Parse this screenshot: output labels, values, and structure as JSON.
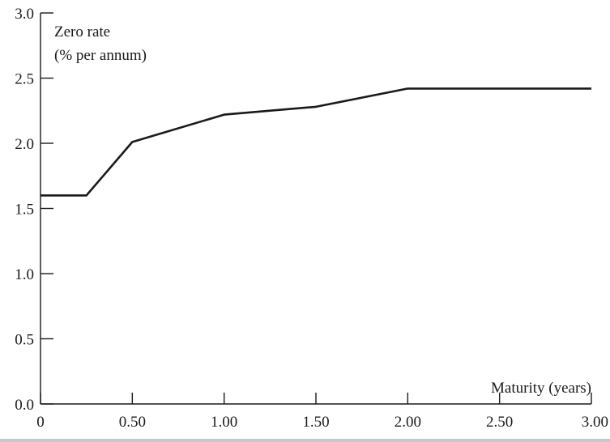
{
  "chart_data": {
    "type": "line",
    "title": "",
    "ylabel_lines": [
      "Zero rate",
      "(% per annum)"
    ],
    "xlabel": "Maturity (years)",
    "xlim": [
      0,
      3
    ],
    "ylim": [
      0,
      3
    ],
    "x_ticks": [
      0,
      0.5,
      1,
      1.5,
      2,
      2.5,
      3
    ],
    "x_tick_labels": [
      "0",
      "0.50",
      "1.00",
      "1.50",
      "2.00",
      "2.50",
      "3.00"
    ],
    "y_ticks": [
      0,
      0.5,
      1,
      1.5,
      2,
      2.5,
      3
    ],
    "y_tick_labels": [
      "0.0",
      "0.5",
      "1.0",
      "1.5",
      "2.0",
      "2.5",
      "3.0"
    ],
    "grid": false,
    "series": [
      {
        "x": [
          0,
          0.25,
          0.5,
          1.0,
          1.5,
          2.0,
          3.0
        ],
        "y": [
          1.6,
          1.6,
          2.01,
          2.22,
          2.28,
          2.42,
          2.42
        ]
      }
    ]
  }
}
